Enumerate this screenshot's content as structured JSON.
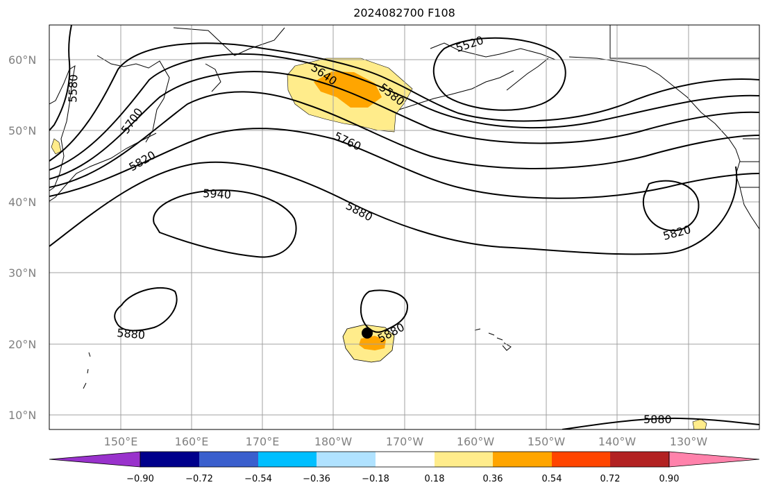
{
  "title": "2024082700 F108",
  "lat_labels": [
    "60°N",
    "50°N",
    "40°N",
    "30°N",
    "20°N",
    "10°N"
  ],
  "lon_labels": [
    "150°E",
    "160°E",
    "170°E",
    "180°W",
    "170°W",
    "160°W",
    "150°W",
    "140°W",
    "130°W"
  ],
  "colorbar": {
    "colors": [
      "#9932cc",
      "#00008b",
      "#3a5fcd",
      "#00bfff",
      "#b0e2ff",
      "#ffffff",
      "#ffec8b",
      "#ffa500",
      "#ff4500",
      "#b22222",
      "#ff82ab"
    ],
    "tick_labels": [
      "−0.90",
      "−0.72",
      "−0.54",
      "−0.36",
      "−0.18",
      "0.18",
      "0.36",
      "0.54",
      "0.72",
      "0.90"
    ]
  },
  "contour_labels": [
    "5580",
    "5700",
    "5820",
    "5640",
    "5580",
    "5520",
    "5760",
    "5940",
    "5880",
    "5820",
    "5880",
    "5880",
    "5880"
  ],
  "colors": {
    "shade_light": "#ffec8b",
    "shade_mid": "#ffa500",
    "grid": "#a0a0a0",
    "contour": "#000000"
  }
}
